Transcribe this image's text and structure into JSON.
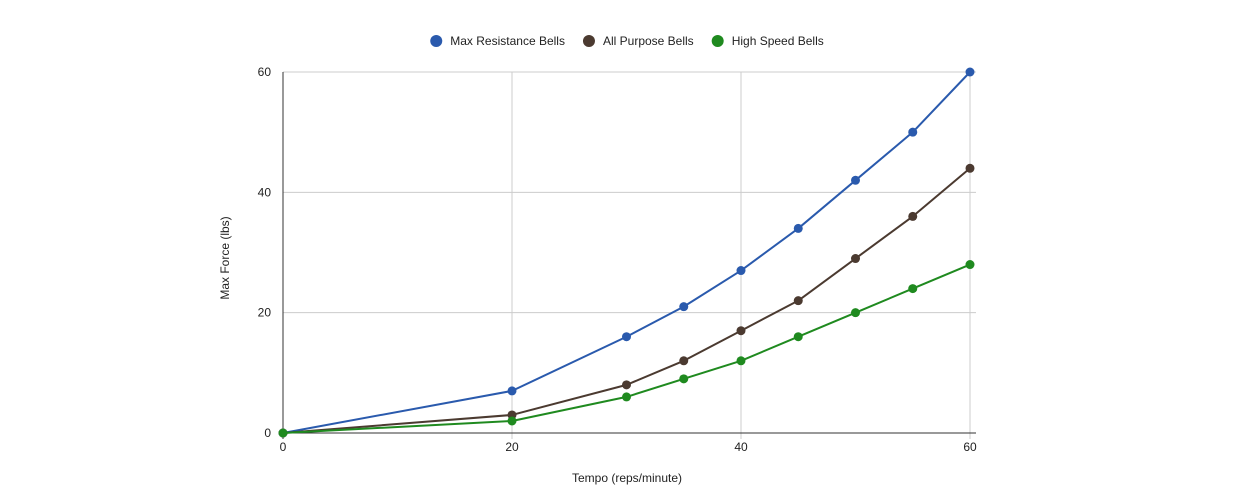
{
  "chart_data": {
    "type": "line",
    "x": [
      0,
      20,
      30,
      35,
      40,
      45,
      50,
      55,
      60
    ],
    "series": [
      {
        "name": "Max Resistance Bells",
        "color": "#2a5aad",
        "values": [
          0,
          7,
          16,
          21,
          27,
          34,
          42,
          50,
          60
        ]
      },
      {
        "name": "All Purpose Bells",
        "color": "#4b3a30",
        "values": [
          0,
          3,
          8,
          12,
          17,
          22,
          29,
          36,
          44
        ]
      },
      {
        "name": "High Speed Bells",
        "color": "#1f8a1f",
        "values": [
          0,
          2,
          6,
          9,
          12,
          16,
          20,
          24,
          28
        ]
      }
    ],
    "xlabel": "Tempo (reps/minute)",
    "ylabel": "Max Force (lbs)",
    "xlim": [
      0,
      60
    ],
    "ylim": [
      0,
      60
    ],
    "xticks": [
      0,
      20,
      40,
      60
    ],
    "yticks": [
      0,
      20,
      40,
      60
    ],
    "grid": true,
    "legend_position": "top"
  }
}
